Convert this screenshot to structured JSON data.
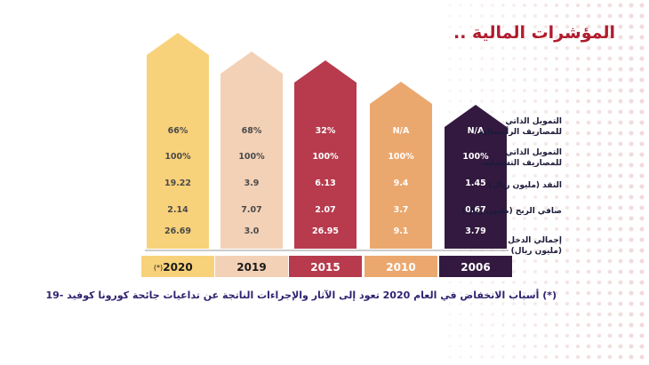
{
  "title": "المؤشرات المالية ..",
  "colors": {
    "title": "#b01c2e",
    "labels": "#1b1b3a",
    "footnote": "#2f2370",
    "base_line": "#9a9a9a"
  },
  "row_labels": [
    [
      "التمويل الذاتي",
      "للمصاريف الرأسمالية"
    ],
    [
      "التمويل الذاتي",
      "للمصاريف التشغيلية"
    ],
    [
      "النقد (مليون ريال)"
    ],
    [
      "صافي الربح (مليون ريال)"
    ],
    [
      "إجمالي الدخل",
      "(مليون ريال)"
    ]
  ],
  "footnote": "(*) أسباب الانخفاض في العام 2020 تعود إلى الآثار والإجراءات الناتجة عن تداعيات جائحة كورونا كوفيد -19",
  "chart_data": {
    "type": "table",
    "title": "المؤشرات المالية ..",
    "columns": [
      {
        "year": "2020",
        "note": "(*)",
        "color": "#f8d27a",
        "text_color": "#4a4a4a",
        "year_bg": "#f8d27a",
        "year_color": "#1a1a1a",
        "values": [
          "66%",
          "100%",
          "19.22",
          "2.14",
          "26.69"
        ]
      },
      {
        "year": "2019",
        "note": "",
        "color": "#f3d1b6",
        "text_color": "#4a4a4a",
        "year_bg": "#f3d1b6",
        "year_color": "#1a1a1a",
        "values": [
          "68%",
          "100%",
          "3.9",
          "7.07",
          "3.0"
        ]
      },
      {
        "year": "2015",
        "note": "",
        "color": "#b73b4d",
        "text_color": "#ffffff",
        "year_bg": "#b73b4d",
        "year_color": "#ffffff",
        "values": [
          "32%",
          "100%",
          "6.13",
          "2.07",
          "26.95"
        ]
      },
      {
        "year": "2010",
        "note": "",
        "color": "#eba86e",
        "text_color": "#ffffff",
        "year_bg": "#eba86e",
        "year_color": "#ffffff",
        "values": [
          "N/A",
          "100%",
          "9.4",
          "3.7",
          "9.1"
        ]
      },
      {
        "year": "2006",
        "note": "",
        "color": "#33193f",
        "text_color": "#ffffff",
        "year_bg": "#33193f",
        "year_color": "#ffffff",
        "values": [
          "N/A",
          "100%",
          "1.45",
          "0.67",
          "3.79"
        ]
      }
    ]
  }
}
